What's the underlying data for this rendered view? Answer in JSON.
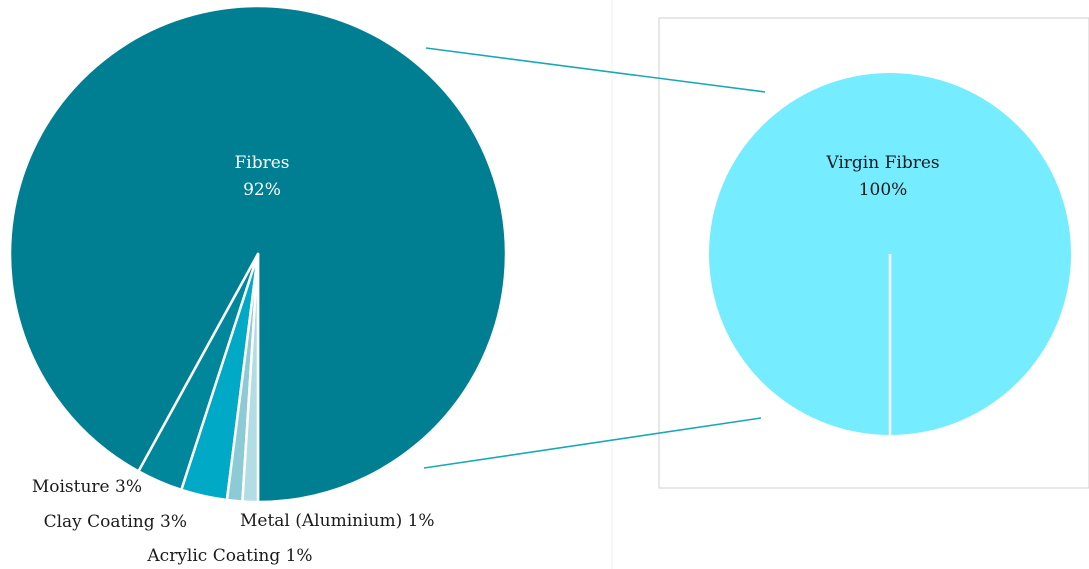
{
  "chart_data": [
    {
      "type": "pie",
      "title": "",
      "categories": [
        "Fibres",
        "Moisture",
        "Clay Coating",
        "Acrylic Coating",
        "Metal (Aluminium)"
      ],
      "values": [
        92,
        3,
        3,
        1,
        1
      ],
      "labels": [
        "Fibres",
        "Moisture 3%",
        "Clay Coating 3%",
        "Acrylic Coating 1%",
        "Metal (Aluminium) 1%"
      ],
      "percent_labels": [
        "92%",
        "",
        "",
        "",
        ""
      ],
      "colors": [
        "#007f93",
        "#00879b",
        "#00a9c6",
        "#8ccad6",
        "#b3dde5"
      ]
    },
    {
      "type": "pie",
      "title": "",
      "categories": [
        "Virgin Fibres"
      ],
      "values": [
        100
      ],
      "labels": [
        "Virgin Fibres"
      ],
      "percent_labels": [
        "100%"
      ],
      "colors": [
        "#75ecff"
      ]
    }
  ],
  "colors": {
    "connector": "#1aa8b8",
    "slice_border": "#ffffff",
    "inner_label": "#ffffff",
    "outer_label": "#1a1a1a",
    "frame": "#c8c8c8"
  }
}
